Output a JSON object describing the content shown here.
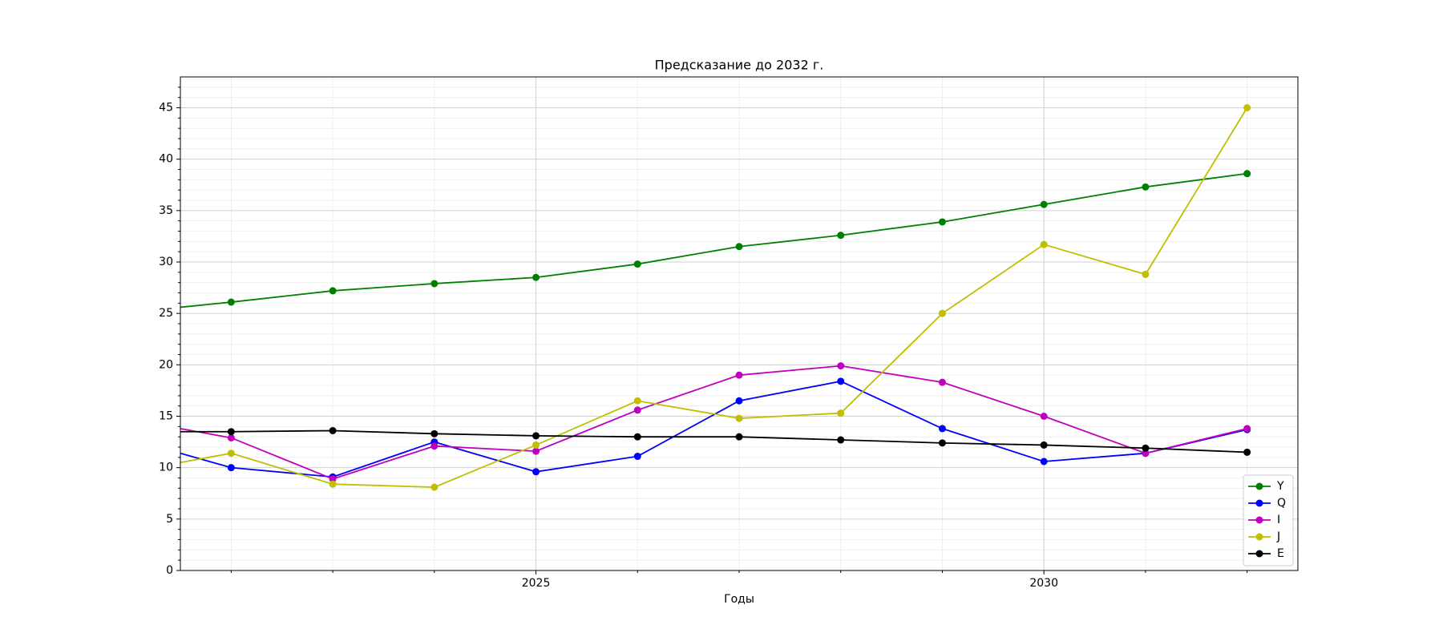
{
  "chart_data": {
    "type": "line",
    "title": "Предсказание до 2032 г.",
    "x_label": "Годы",
    "x": [
      2021,
      2022,
      2023,
      2024,
      2025,
      2026,
      2027,
      2028,
      2029,
      2030,
      2031,
      2032
    ],
    "series": [
      {
        "name": "Y",
        "color": "#008000",
        "values": [
          25.1,
          26.1,
          27.2,
          27.9,
          28.5,
          29.8,
          31.5,
          32.6,
          33.9,
          35.6,
          37.3,
          38.6
        ]
      },
      {
        "name": "Q",
        "color": "#0000ff",
        "values": [
          12.8,
          10.0,
          9.1,
          12.5,
          9.6,
          11.1,
          16.5,
          18.4,
          13.8,
          10.6,
          11.4,
          13.7
        ]
      },
      {
        "name": "I",
        "color": "#bf00bf",
        "values": [
          14.7,
          12.9,
          8.9,
          12.1,
          11.6,
          15.6,
          19.0,
          19.9,
          18.3,
          15.0,
          11.4,
          13.8
        ]
      },
      {
        "name": "J",
        "color": "#bfbf00",
        "values": [
          9.6,
          11.4,
          8.4,
          8.1,
          12.2,
          16.5,
          14.8,
          15.3,
          25.0,
          31.7,
          28.8,
          45.0
        ]
      },
      {
        "name": "E",
        "color": "#000000",
        "values": [
          13.5,
          13.5,
          13.6,
          13.3,
          13.1,
          13.0,
          13.0,
          12.7,
          12.4,
          12.2,
          11.9,
          11.5
        ]
      }
    ],
    "xlim": [
      2021.5,
      2032.5
    ],
    "xticks": [
      2025,
      2030
    ],
    "xminorticks": [
      2022,
      2023,
      2024,
      2026,
      2027,
      2028,
      2029,
      2031,
      2032
    ],
    "ylim": [
      0,
      48
    ],
    "yticks": [
      0,
      5,
      10,
      15,
      20,
      25,
      30,
      35,
      40,
      45
    ],
    "yminorticks": [
      1,
      2,
      3,
      4,
      6,
      7,
      8,
      9,
      11,
      12,
      13,
      14,
      16,
      17,
      18,
      19,
      21,
      22,
      23,
      24,
      26,
      27,
      28,
      29,
      31,
      32,
      33,
      34,
      36,
      37,
      38,
      39,
      41,
      42,
      43,
      44,
      46,
      47
    ],
    "grid": true,
    "legend": "lower right"
  }
}
